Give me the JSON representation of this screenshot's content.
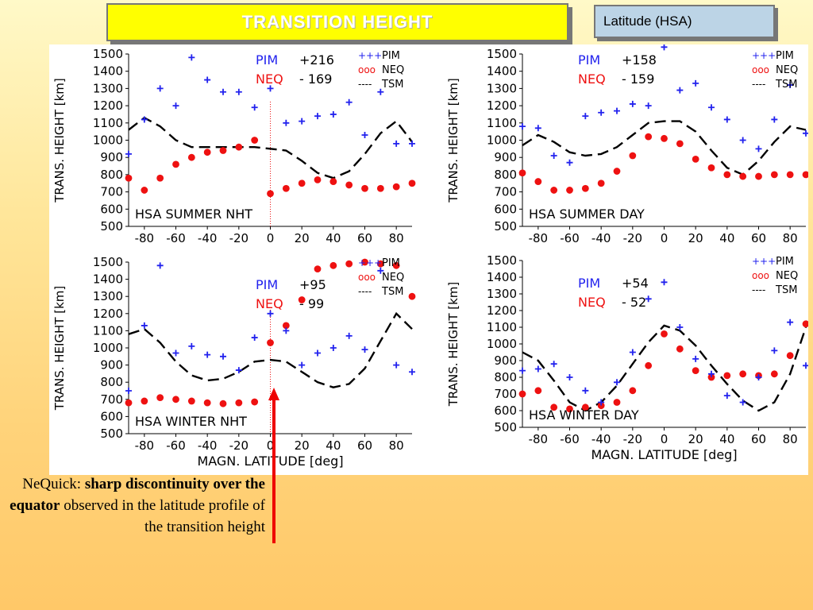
{
  "slide": {
    "title": "TRANSITION  HEIGHT",
    "tag": "Latitude (HSA)",
    "caption": {
      "pre": "NeQuick: ",
      "bold": "sharp discontinuity over the equator",
      "post": " observed in the latitude profile of the transition height"
    }
  },
  "colors": {
    "pim": "#2222ee",
    "neq": "#ee1111",
    "tsm": "#000000",
    "red_arrow": "#ee0000"
  },
  "chart_data": [
    {
      "type": "scatter",
      "panel_label": "HSA  SUMMER  NHT",
      "ylabel": "TRANS. HEIGHT [km]",
      "xlabel": "",
      "ylim": [
        500,
        1500
      ],
      "xlim": [
        -90,
        90
      ],
      "yticks": [
        "1500",
        "1400",
        "1300",
        "1200",
        "1100",
        "1000",
        "900",
        "800",
        "700",
        "600",
        "500"
      ],
      "xticks": [
        "-80",
        "-60",
        "-40",
        "-20",
        "0",
        "20",
        "40",
        "60",
        "80"
      ],
      "stats": {
        "pim_name": "PIM",
        "pim_value": "+216",
        "neq_name": "NEQ",
        "neq_value": "- 169"
      },
      "legend": [
        "PIM",
        "NEQ",
        "TSM"
      ],
      "legend_symbols": [
        "+++",
        "ooo",
        "----"
      ],
      "equator_line": true,
      "series": [
        {
          "name": "PIM",
          "x": [
            -90,
            -80,
            -70,
            -60,
            -50,
            -40,
            -30,
            -20,
            -10,
            0,
            10,
            20,
            30,
            40,
            50,
            60,
            70,
            80,
            90
          ],
          "y": [
            920,
            1120,
            1300,
            1200,
            1480,
            1350,
            1280,
            1280,
            1190,
            1300,
            1100,
            1110,
            1140,
            1150,
            1220,
            1030,
            1280,
            980,
            980
          ]
        },
        {
          "name": "NEQ",
          "x": [
            -90,
            -80,
            -70,
            -60,
            -50,
            -40,
            -30,
            -20,
            -10,
            0,
            10,
            20,
            30,
            40,
            50,
            60,
            70,
            80,
            90
          ],
          "y": [
            780,
            710,
            780,
            860,
            900,
            930,
            940,
            960,
            1000,
            690,
            720,
            750,
            770,
            760,
            740,
            720,
            720,
            730,
            750
          ]
        },
        {
          "name": "TSM",
          "x": [
            -90,
            -80,
            -70,
            -60,
            -50,
            -40,
            -30,
            -20,
            -10,
            0,
            10,
            20,
            30,
            40,
            50,
            60,
            70,
            80,
            90
          ],
          "y": [
            1060,
            1130,
            1080,
            1000,
            960,
            960,
            960,
            960,
            960,
            950,
            940,
            880,
            810,
            780,
            820,
            920,
            1040,
            1110,
            990
          ]
        }
      ]
    },
    {
      "type": "scatter",
      "panel_label": "HSA  SUMMER  DAY",
      "ylabel": "TRANS. HEIGHT [km]",
      "xlabel": "",
      "ylim": [
        500,
        1500
      ],
      "xlim": [
        -90,
        90
      ],
      "yticks": [
        "1500",
        "1400",
        "1300",
        "1200",
        "1100",
        "1000",
        "900",
        "800",
        "700",
        "600",
        "500"
      ],
      "xticks": [
        "-80",
        "-60",
        "-40",
        "-20",
        "0",
        "20",
        "40",
        "60",
        "80"
      ],
      "stats": {
        "pim_name": "PIM",
        "pim_value": "+158",
        "neq_name": "NEQ",
        "neq_value": "- 159"
      },
      "legend": [
        "PIM",
        "NEQ",
        "TSM"
      ],
      "legend_symbols": [
        "+++",
        "ooo",
        "----"
      ],
      "equator_line": false,
      "series": [
        {
          "name": "PIM",
          "x": [
            -90,
            -80,
            -70,
            -60,
            -50,
            -40,
            -30,
            -20,
            -10,
            0,
            10,
            20,
            30,
            40,
            50,
            60,
            70,
            80,
            90
          ],
          "y": [
            1080,
            1070,
            910,
            870,
            1140,
            1160,
            1170,
            1210,
            1200,
            1540,
            1290,
            1330,
            1190,
            1120,
            1000,
            950,
            1120,
            1320,
            1040
          ]
        },
        {
          "name": "NEQ",
          "x": [
            -90,
            -80,
            -70,
            -60,
            -50,
            -40,
            -30,
            -20,
            -10,
            0,
            10,
            20,
            30,
            40,
            50,
            60,
            70,
            80,
            90
          ],
          "y": [
            810,
            760,
            710,
            710,
            720,
            750,
            820,
            910,
            1020,
            1010,
            980,
            890,
            840,
            800,
            790,
            790,
            800,
            800,
            800
          ]
        },
        {
          "name": "TSM",
          "x": [
            -90,
            -80,
            -70,
            -60,
            -50,
            -40,
            -30,
            -20,
            -10,
            0,
            10,
            20,
            30,
            40,
            50,
            60,
            70,
            80,
            90
          ],
          "y": [
            970,
            1030,
            990,
            930,
            910,
            920,
            960,
            1030,
            1100,
            1110,
            1110,
            1050,
            940,
            840,
            800,
            880,
            990,
            1080,
            1060
          ]
        }
      ]
    },
    {
      "type": "scatter",
      "panel_label": "HSA  WINTER  NHT",
      "ylabel": "TRANS. HEIGHT [km]",
      "xlabel": "MAGN. LATITUDE [deg]",
      "ylim": [
        500,
        1500
      ],
      "xlim": [
        -90,
        90
      ],
      "yticks": [
        "1500",
        "1400",
        "1300",
        "1200",
        "1100",
        "1000",
        "900",
        "800",
        "700",
        "600",
        "500"
      ],
      "xticks": [
        "-80",
        "-60",
        "-40",
        "-20",
        "0",
        "20",
        "40",
        "60",
        "80"
      ],
      "stats": {
        "pim_name": "PIM",
        "pim_value": "+95",
        "neq_name": "NEQ",
        "neq_value": "- 99"
      },
      "legend": [
        "PIM",
        "NEQ",
        "TSM"
      ],
      "legend_symbols": [
        "+++",
        "ooo",
        "----"
      ],
      "equator_line": true,
      "series": [
        {
          "name": "PIM",
          "x": [
            -90,
            -80,
            -70,
            -60,
            -50,
            -40,
            -30,
            -20,
            -10,
            0,
            10,
            20,
            30,
            40,
            50,
            60,
            70,
            80,
            90
          ],
          "y": [
            750,
            1130,
            1480,
            970,
            1010,
            960,
            950,
            870,
            1060,
            1200,
            1100,
            900,
            970,
            1000,
            1070,
            990,
            1450,
            900,
            860
          ]
        },
        {
          "name": "NEQ",
          "x": [
            -90,
            -80,
            -70,
            -60,
            -50,
            -40,
            -30,
            -20,
            -10,
            0,
            10,
            20,
            30,
            40,
            50,
            60,
            70,
            80,
            90
          ],
          "y": [
            680,
            690,
            710,
            700,
            690,
            680,
            675,
            680,
            685,
            1030,
            1130,
            1280,
            1460,
            1480,
            1490,
            1500,
            1490,
            1480,
            1300
          ]
        },
        {
          "name": "TSM",
          "x": [
            -90,
            -80,
            -70,
            -60,
            -50,
            -40,
            -30,
            -20,
            -10,
            0,
            10,
            20,
            30,
            40,
            50,
            60,
            70,
            80,
            90
          ],
          "y": [
            1080,
            1110,
            1030,
            920,
            840,
            810,
            820,
            860,
            920,
            930,
            920,
            860,
            800,
            770,
            790,
            880,
            1040,
            1200,
            1110
          ]
        }
      ]
    },
    {
      "type": "scatter",
      "panel_label": "HSA  WINTER  DAY",
      "ylabel": "TRANS. HEIGHT [km]",
      "xlabel": "MAGN. LATITUDE [deg]",
      "ylim": [
        500,
        1500
      ],
      "xlim": [
        -90,
        90
      ],
      "yticks": [
        "1500",
        "1400",
        "1300",
        "1200",
        "1100",
        "1000",
        "900",
        "800",
        "700",
        "600",
        "500"
      ],
      "xticks": [
        "-80",
        "-60",
        "-40",
        "-20",
        "0",
        "20",
        "40",
        "60",
        "80"
      ],
      "stats": {
        "pim_name": "PIM",
        "pim_value": "+54",
        "neq_name": "NEQ",
        "neq_value": "- 52"
      },
      "legend": [
        "PIM",
        "NEQ",
        "TSM"
      ],
      "legend_symbols": [
        "+++",
        "ooo",
        "----"
      ],
      "equator_line": false,
      "series": [
        {
          "name": "PIM",
          "x": [
            -90,
            -80,
            -70,
            -60,
            -50,
            -40,
            -30,
            -20,
            -10,
            0,
            10,
            20,
            30,
            40,
            50,
            60,
            70,
            80,
            90
          ],
          "y": [
            840,
            850,
            880,
            800,
            720,
            650,
            770,
            950,
            1270,
            1370,
            1100,
            910,
            820,
            690,
            650,
            800,
            960,
            1130,
            870
          ]
        },
        {
          "name": "NEQ",
          "x": [
            -90,
            -80,
            -70,
            -60,
            -50,
            -40,
            -30,
            -20,
            -10,
            0,
            10,
            20,
            30,
            40,
            50,
            60,
            70,
            80,
            90
          ],
          "y": [
            700,
            720,
            620,
            610,
            620,
            630,
            650,
            720,
            870,
            1060,
            970,
            840,
            800,
            810,
            820,
            810,
            820,
            930,
            1120
          ]
        },
        {
          "name": "TSM",
          "x": [
            -90,
            -80,
            -70,
            -60,
            -50,
            -40,
            -30,
            -20,
            -10,
            0,
            10,
            20,
            30,
            40,
            50,
            60,
            70,
            80,
            90
          ],
          "y": [
            950,
            900,
            780,
            650,
            600,
            650,
            750,
            880,
            1010,
            1110,
            1080,
            990,
            870,
            760,
            660,
            600,
            650,
            820,
            1100
          ]
        }
      ]
    }
  ]
}
